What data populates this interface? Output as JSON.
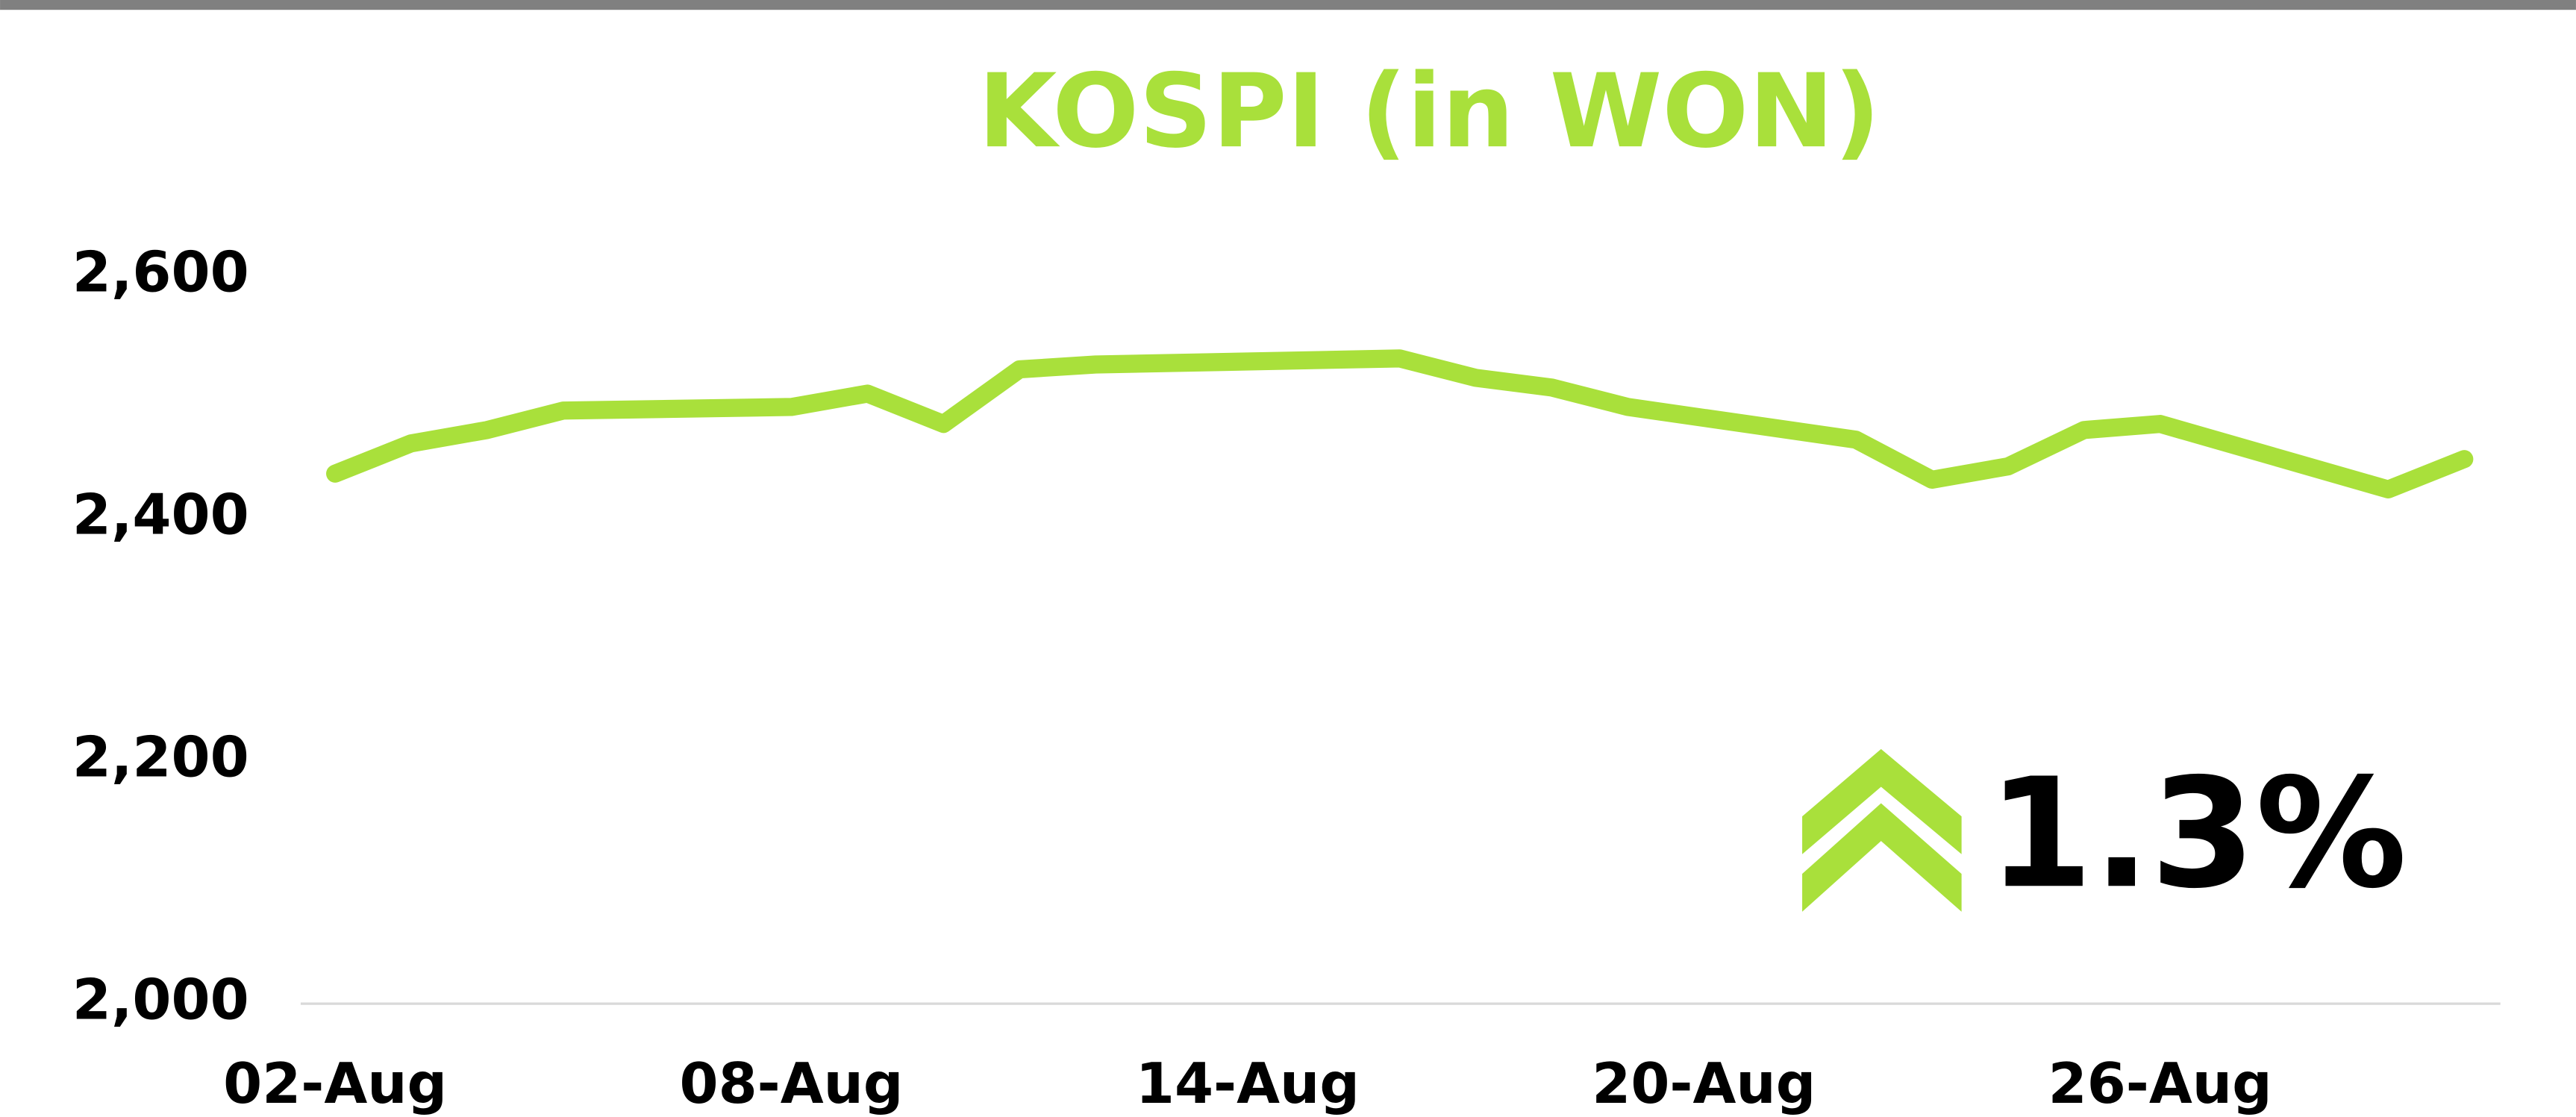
{
  "chart_data": {
    "type": "line",
    "title": "KOSPI (in WON)",
    "x": [
      "02-Aug",
      "03-Aug",
      "04-Aug",
      "05-Aug",
      "08-Aug",
      "09-Aug",
      "10-Aug",
      "11-Aug",
      "12-Aug",
      "16-Aug",
      "17-Aug",
      "18-Aug",
      "19-Aug",
      "22-Aug",
      "23-Aug",
      "24-Aug",
      "25-Aug",
      "26-Aug",
      "29-Aug",
      "30-Aug"
    ],
    "series": [
      {
        "name": "KOSPI",
        "color": "#a9e03b",
        "values": [
          2437,
          2462,
          2473,
          2489,
          2492,
          2503,
          2478,
          2523,
          2527,
          2532,
          2516,
          2508,
          2492,
          2465,
          2432,
          2443,
          2473,
          2478,
          2424,
          2449
        ]
      }
    ],
    "xticks": [
      "02-Aug",
      "08-Aug",
      "14-Aug",
      "20-Aug",
      "26-Aug"
    ],
    "ylim": [
      2000,
      2600
    ],
    "yticks": [
      {
        "value": 2000,
        "label": "2,000"
      },
      {
        "value": 2200,
        "label": "2,200"
      },
      {
        "value": 2400,
        "label": "2,400"
      },
      {
        "value": 2600,
        "label": "2,600"
      }
    ],
    "annotation": "1.3%"
  }
}
